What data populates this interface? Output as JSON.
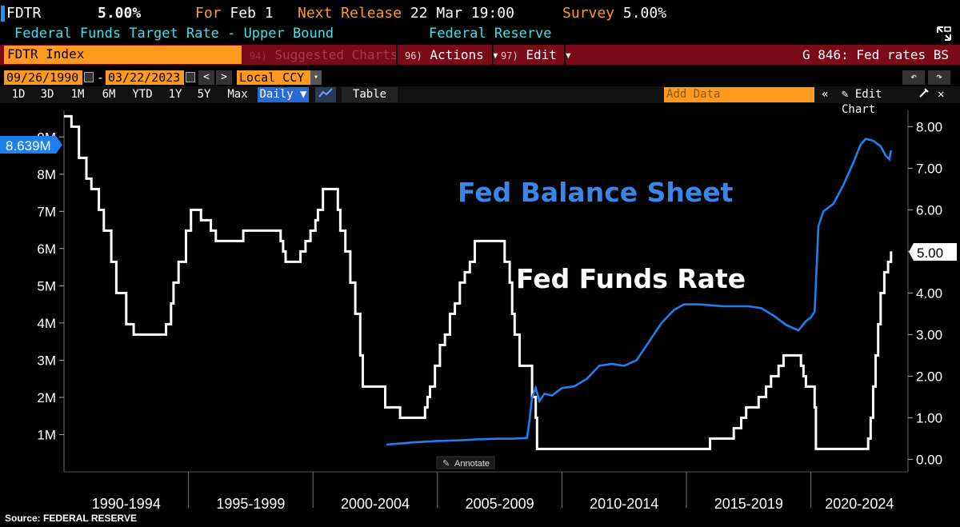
{
  "header": {
    "ticker": "FDTR",
    "price": "5.00%",
    "for_label": "For",
    "for_value": "Feb 1",
    "next_label": "Next Release",
    "next_value": "22 Mar 19:00",
    "survey_label": "Survey",
    "survey_value": "5.00%",
    "description": "Federal Funds Target Rate - Upper Bound",
    "source": "Federal Reserve"
  },
  "toolbar": {
    "index_field": "FDTR Index",
    "suggested_num": "94)",
    "suggested_label": "Suggested Charts",
    "actions_num": "96)",
    "actions_label": "Actions ▾",
    "edit_num": "97)",
    "edit_label": "Edit ▾",
    "graph_title": "G 846: Fed rates BS",
    "start_date": "09/26/1990",
    "end_date": "03/22/2023",
    "dash": "-",
    "currency": "Local CCY",
    "ranges": [
      "1D",
      "3D",
      "1M",
      "6M",
      "YTD",
      "1Y",
      "5Y",
      "Max"
    ],
    "frequency": "Daily ▼",
    "table_label": "Table",
    "add_data_placeholder": "Add Data",
    "edit_chart_label": "✎ Edit Chart"
  },
  "colors": {
    "balance_sheet": "#1e7ff0",
    "fed_funds": "#ffffff",
    "accent": "#ff9a1f",
    "toolbar_red": "#7a0a16"
  },
  "chart_data": {
    "type": "line",
    "x_tick_labels": [
      "1990-1994",
      "1995-1999",
      "2000-2004",
      "2005-2009",
      "2010-2014",
      "2015-2019",
      "2020-2024"
    ],
    "left_axis": {
      "ticks": [
        "1M",
        "2M",
        "3M",
        "4M",
        "5M",
        "6M",
        "7M",
        "8M",
        "9M"
      ],
      "ylim": [
        0,
        9.5
      ],
      "unit": "M"
    },
    "right_axis": {
      "ticks": [
        "0.00",
        "1.00",
        "2.00",
        "3.00",
        "4.00",
        "5.00",
        "6.00",
        "7.00",
        "8.00"
      ],
      "ylim": [
        -0.3,
        8.2
      ]
    },
    "annotations": {
      "balance_sheet": "Fed Balance Sheet",
      "fed_funds": "Fed Funds Rate",
      "annotate_button": "Annotate"
    },
    "last_values": {
      "left": "8.639M",
      "right": "5.00"
    },
    "series": [
      {
        "name": "Fed Funds Rate",
        "axis": "right",
        "points": [
          [
            1990.0,
            8.25
          ],
          [
            1990.3,
            8.0
          ],
          [
            1990.6,
            7.25
          ],
          [
            1990.9,
            6.75
          ],
          [
            1991.1,
            6.5
          ],
          [
            1991.4,
            6.0
          ],
          [
            1991.6,
            5.5
          ],
          [
            1991.9,
            4.75
          ],
          [
            1992.1,
            4.0
          ],
          [
            1992.5,
            3.25
          ],
          [
            1992.8,
            3.0
          ],
          [
            1993.5,
            3.0
          ],
          [
            1994.0,
            3.0
          ],
          [
            1994.1,
            3.25
          ],
          [
            1994.3,
            3.75
          ],
          [
            1994.4,
            4.25
          ],
          [
            1994.6,
            4.75
          ],
          [
            1994.9,
            5.5
          ],
          [
            1995.1,
            6.0
          ],
          [
            1995.5,
            5.75
          ],
          [
            1995.9,
            5.5
          ],
          [
            1996.1,
            5.25
          ],
          [
            1997.2,
            5.5
          ],
          [
            1998.7,
            5.25
          ],
          [
            1998.8,
            5.0
          ],
          [
            1998.9,
            4.75
          ],
          [
            1999.5,
            5.0
          ],
          [
            1999.7,
            5.25
          ],
          [
            1999.9,
            5.5
          ],
          [
            2000.1,
            5.75
          ],
          [
            2000.2,
            6.0
          ],
          [
            2000.4,
            6.5
          ],
          [
            2001.0,
            6.0
          ],
          [
            2001.1,
            5.5
          ],
          [
            2001.3,
            5.0
          ],
          [
            2001.5,
            4.25
          ],
          [
            2001.7,
            3.5
          ],
          [
            2001.9,
            2.5
          ],
          [
            2002.0,
            1.75
          ],
          [
            2002.9,
            1.25
          ],
          [
            2003.5,
            1.0
          ],
          [
            2004.5,
            1.25
          ],
          [
            2004.6,
            1.5
          ],
          [
            2004.7,
            1.75
          ],
          [
            2004.9,
            2.25
          ],
          [
            2005.1,
            2.75
          ],
          [
            2005.3,
            3.0
          ],
          [
            2005.5,
            3.5
          ],
          [
            2005.7,
            3.75
          ],
          [
            2005.9,
            4.25
          ],
          [
            2006.1,
            4.5
          ],
          [
            2006.3,
            4.75
          ],
          [
            2006.5,
            5.25
          ],
          [
            2007.6,
            5.25
          ],
          [
            2007.7,
            4.75
          ],
          [
            2007.9,
            4.25
          ],
          [
            2008.0,
            3.5
          ],
          [
            2008.1,
            3.0
          ],
          [
            2008.3,
            2.25
          ],
          [
            2008.8,
            1.5
          ],
          [
            2008.95,
            1.0
          ],
          [
            2009.0,
            0.25
          ],
          [
            2015.9,
            0.25
          ],
          [
            2015.95,
            0.5
          ],
          [
            2016.9,
            0.75
          ],
          [
            2017.2,
            1.0
          ],
          [
            2017.4,
            1.25
          ],
          [
            2017.9,
            1.5
          ],
          [
            2018.2,
            1.75
          ],
          [
            2018.4,
            2.0
          ],
          [
            2018.7,
            2.25
          ],
          [
            2018.9,
            2.5
          ],
          [
            2019.5,
            2.5
          ],
          [
            2019.6,
            2.25
          ],
          [
            2019.7,
            2.0
          ],
          [
            2019.8,
            1.75
          ],
          [
            2020.15,
            1.25
          ],
          [
            2020.2,
            0.25
          ],
          [
            2022.2,
            0.25
          ],
          [
            2022.3,
            0.5
          ],
          [
            2022.4,
            1.0
          ],
          [
            2022.5,
            1.75
          ],
          [
            2022.6,
            2.5
          ],
          [
            2022.7,
            3.25
          ],
          [
            2022.8,
            4.0
          ],
          [
            2022.95,
            4.5
          ],
          [
            2023.1,
            4.75
          ],
          [
            2023.22,
            5.0
          ]
        ]
      },
      {
        "name": "Fed Balance Sheet",
        "axis": "left",
        "points": [
          [
            2002.95,
            0.73
          ],
          [
            2003.5,
            0.76
          ],
          [
            2004.0,
            0.79
          ],
          [
            2004.5,
            0.81
          ],
          [
            2005.0,
            0.83
          ],
          [
            2005.5,
            0.84
          ],
          [
            2006.0,
            0.85
          ],
          [
            2006.5,
            0.87
          ],
          [
            2007.0,
            0.88
          ],
          [
            2007.5,
            0.89
          ],
          [
            2008.0,
            0.89
          ],
          [
            2008.6,
            0.91
          ],
          [
            2008.7,
            1.4
          ],
          [
            2008.8,
            2.0
          ],
          [
            2008.95,
            2.25
          ],
          [
            2009.1,
            1.9
          ],
          [
            2009.3,
            2.1
          ],
          [
            2009.6,
            2.05
          ],
          [
            2010.0,
            2.25
          ],
          [
            2010.5,
            2.3
          ],
          [
            2011.0,
            2.5
          ],
          [
            2011.5,
            2.85
          ],
          [
            2012.0,
            2.9
          ],
          [
            2012.5,
            2.85
          ],
          [
            2013.0,
            3.0
          ],
          [
            2013.5,
            3.5
          ],
          [
            2014.0,
            4.0
          ],
          [
            2014.5,
            4.35
          ],
          [
            2014.9,
            4.5
          ],
          [
            2015.5,
            4.5
          ],
          [
            2016.5,
            4.45
          ],
          [
            2017.5,
            4.45
          ],
          [
            2018.0,
            4.4
          ],
          [
            2018.5,
            4.2
          ],
          [
            2019.0,
            3.95
          ],
          [
            2019.5,
            3.8
          ],
          [
            2019.8,
            4.05
          ],
          [
            2020.0,
            4.15
          ],
          [
            2020.15,
            4.3
          ],
          [
            2020.25,
            5.8
          ],
          [
            2020.3,
            6.6
          ],
          [
            2020.5,
            7.0
          ],
          [
            2020.9,
            7.2
          ],
          [
            2021.3,
            7.7
          ],
          [
            2021.7,
            8.3
          ],
          [
            2022.0,
            8.8
          ],
          [
            2022.2,
            8.95
          ],
          [
            2022.5,
            8.9
          ],
          [
            2022.8,
            8.75
          ],
          [
            2023.0,
            8.5
          ],
          [
            2023.15,
            8.4
          ],
          [
            2023.22,
            8.64
          ]
        ]
      }
    ]
  },
  "footer": {
    "source_label": "Source:",
    "source_value": "FEDERAL RESERVE"
  }
}
